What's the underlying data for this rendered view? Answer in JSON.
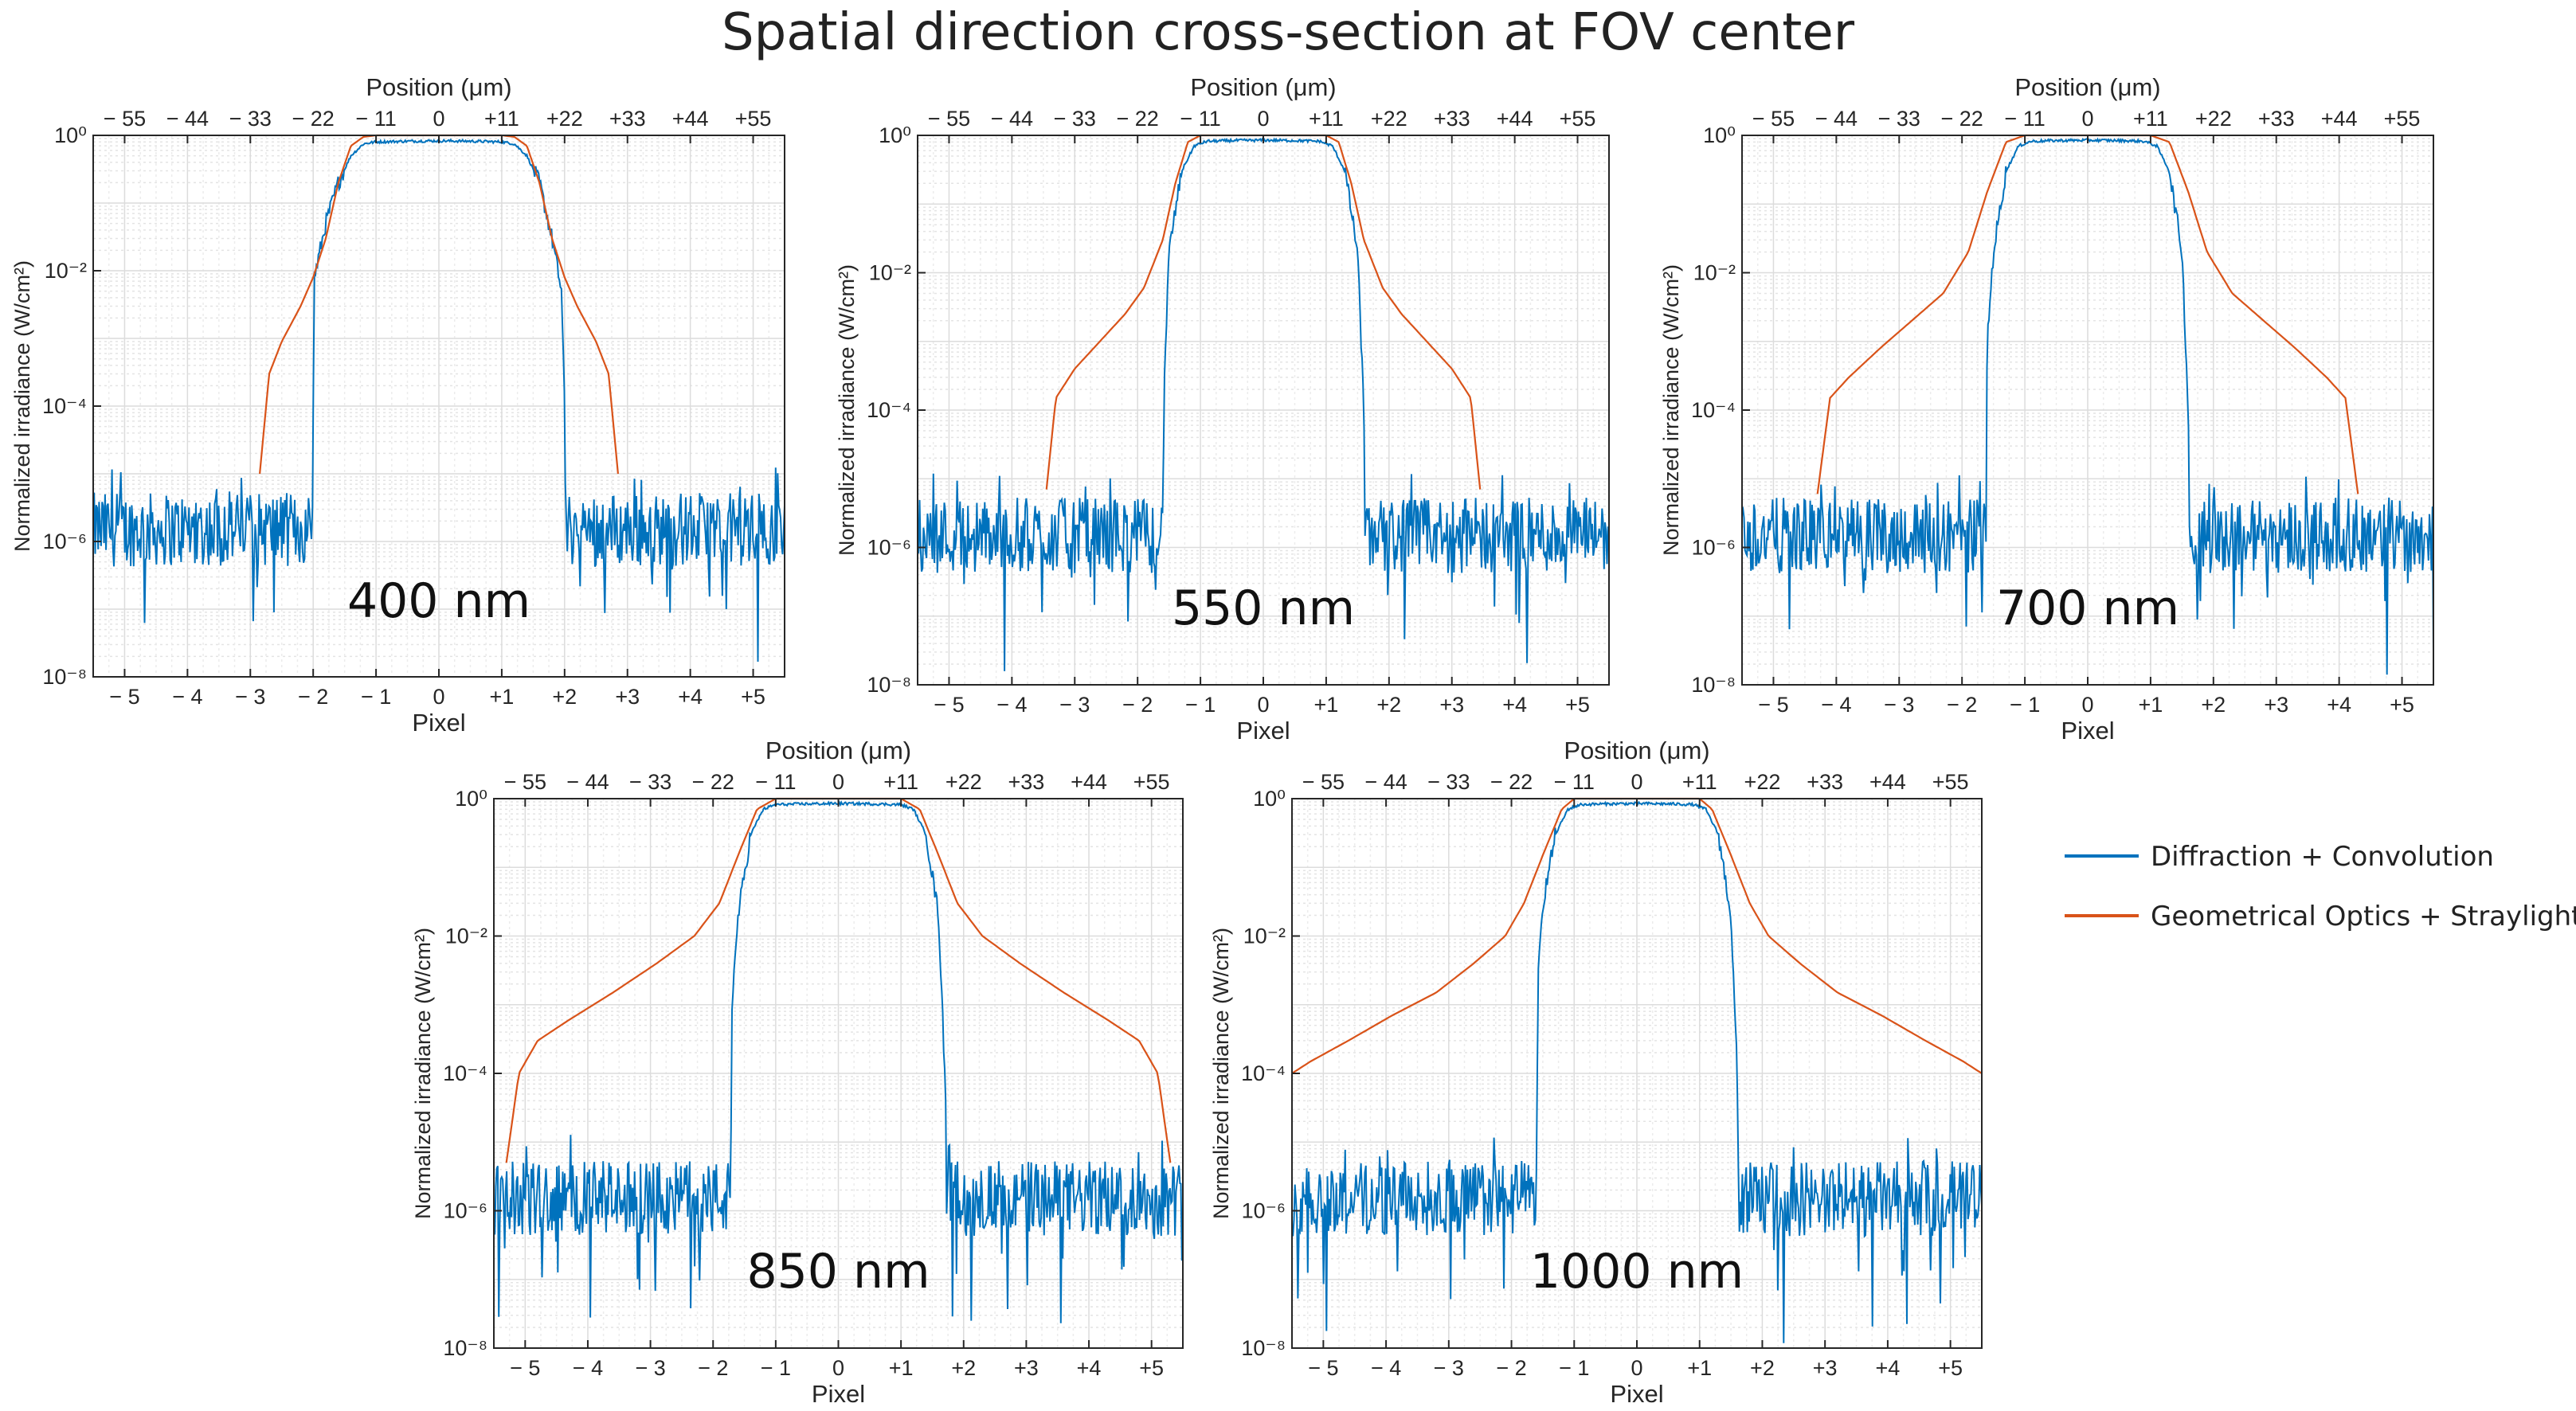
{
  "title": "Spatial direction cross-section at FOV center",
  "legend": [
    {
      "label": "Diffraction + Convolution",
      "color": "#0072BD"
    },
    {
      "label": "Geometrical Optics + Straylight",
      "color": "#D95319"
    }
  ],
  "chart_data": [
    {
      "type": "line",
      "wavelength_label": "400 nm",
      "xlabel": "Pixel",
      "x2label": "Position (μm)",
      "ylabel": "Normalized irradiance (W/cm²)",
      "yscale": "log",
      "ylim": [
        1e-08,
        1
      ],
      "xlim": [
        -5.5,
        5.5
      ],
      "xticks": [
        "− 5",
        "− 4",
        "− 3",
        "− 2",
        "− 1",
        "0",
        "+1",
        "+2",
        "+3",
        "+4",
        "+5"
      ],
      "x2ticks": [
        "− 55",
        "− 44",
        "− 33",
        "− 22",
        "− 11",
        "0",
        "+11",
        "+22",
        "+33",
        "+44",
        "+55"
      ],
      "yticks": [
        "10⁻⁸",
        "10⁻⁶",
        "10⁻⁴",
        "10⁻²",
        "10⁰"
      ],
      "series": [
        {
          "name": "Diffraction + Convolution",
          "x": [
            -5.5,
            -2.02,
            -1.98,
            -1.8,
            -1.6,
            -1.4,
            -1.2,
            -1.0,
            -0.5,
            0,
            0.5,
            1.0,
            1.2,
            1.4,
            1.6,
            1.8,
            1.95,
            2.0,
            2.02,
            5.5
          ],
          "y": [
            1.5e-06,
            1.5e-06,
            0.008,
            0.05,
            0.2,
            0.5,
            0.75,
            0.8,
            0.82,
            0.83,
            0.82,
            0.8,
            0.75,
            0.5,
            0.2,
            0.03,
            0.005,
            0.0001,
            1.5e-06,
            1.5e-06
          ]
        },
        {
          "name": "Geometrical Optics + Straylight",
          "x": [
            -2.85,
            -2.7,
            -2.5,
            -2.2,
            -2.0,
            -1.8,
            -1.6,
            -1.4,
            -1.2,
            -1.0,
            0,
            1.0,
            1.2,
            1.4,
            1.6,
            1.8,
            2.0,
            2.2,
            2.5,
            2.7,
            2.85
          ],
          "y": [
            1e-05,
            0.0003,
            0.0009,
            0.003,
            0.008,
            0.03,
            0.2,
            0.7,
            0.95,
            1.0,
            1.0,
            1.0,
            0.95,
            0.7,
            0.2,
            0.03,
            0.008,
            0.003,
            0.0009,
            0.0003,
            1e-05
          ]
        }
      ]
    },
    {
      "type": "line",
      "wavelength_label": "550 nm",
      "xlabel": "Pixel",
      "x2label": "Position (μm)",
      "ylabel": "Normalized irradiance (W/cm²)",
      "yscale": "log",
      "ylim": [
        1e-08,
        1
      ],
      "xlim": [
        -5.5,
        5.5
      ],
      "xticks": [
        "− 5",
        "− 4",
        "− 3",
        "− 2",
        "− 1",
        "0",
        "+1",
        "+2",
        "+3",
        "+4",
        "+5"
      ],
      "x2ticks": [
        "− 55",
        "− 44",
        "− 33",
        "− 22",
        "− 11",
        "0",
        "+11",
        "+22",
        "+33",
        "+44",
        "+55"
      ],
      "yticks": [
        "10⁻⁸",
        "10⁻⁶",
        "10⁻⁴",
        "10⁻²",
        "10⁰"
      ],
      "series": [
        {
          "name": "Diffraction + Convolution",
          "x": [
            -5.5,
            -1.6,
            -1.58,
            -1.5,
            -1.3,
            -1.1,
            -0.9,
            -0.5,
            0,
            0.5,
            0.9,
            1.1,
            1.3,
            1.5,
            1.6,
            1.62,
            5.5
          ],
          "y": [
            1.5e-06,
            1.5e-06,
            0.0002,
            0.02,
            0.3,
            0.7,
            0.82,
            0.84,
            0.85,
            0.84,
            0.82,
            0.7,
            0.3,
            0.02,
            0.0001,
            1.5e-06,
            1.5e-06
          ]
        },
        {
          "name": "Geometrical Optics + Straylight",
          "x": [
            -3.45,
            -3.3,
            -3.0,
            -2.6,
            -2.2,
            -1.9,
            -1.6,
            -1.4,
            -1.2,
            -1.0,
            0,
            1.0,
            1.2,
            1.4,
            1.6,
            1.9,
            2.2,
            2.6,
            3.0,
            3.3,
            3.45
          ],
          "y": [
            7e-06,
            0.00015,
            0.0004,
            0.001,
            0.0025,
            0.006,
            0.03,
            0.2,
            0.8,
            1.0,
            1.0,
            1.0,
            0.8,
            0.2,
            0.03,
            0.006,
            0.0025,
            0.001,
            0.0004,
            0.00015,
            7e-06
          ]
        }
      ]
    },
    {
      "type": "line",
      "wavelength_label": "700 nm",
      "xlabel": "Pixel",
      "x2label": "Position (μm)",
      "ylabel": "Normalized irradiance (W/cm²)",
      "yscale": "log",
      "ylim": [
        1e-08,
        1
      ],
      "xlim": [
        -5.5,
        5.5
      ],
      "xticks": [
        "− 5",
        "− 4",
        "− 3",
        "− 2",
        "− 1",
        "0",
        "+1",
        "+2",
        "+3",
        "+4",
        "+5"
      ],
      "x2ticks": [
        "− 55",
        "− 44",
        "− 33",
        "− 22",
        "− 11",
        "0",
        "+11",
        "+22",
        "+33",
        "+44",
        "+55"
      ],
      "yticks": [
        "10⁻⁸",
        "10⁻⁶",
        "10⁻⁴",
        "10⁻²",
        "10⁰"
      ],
      "series": [
        {
          "name": "Diffraction + Convolution",
          "x": [
            -5.5,
            -1.62,
            -1.6,
            -1.5,
            -1.3,
            -1.1,
            -0.9,
            -0.5,
            0,
            0.5,
            0.9,
            1.1,
            1.3,
            1.5,
            1.6,
            1.62,
            5.5
          ],
          "y": [
            1.5e-06,
            1.5e-06,
            0.001,
            0.02,
            0.3,
            0.7,
            0.82,
            0.84,
            0.85,
            0.84,
            0.82,
            0.7,
            0.3,
            0.02,
            0.0001,
            1.5e-06,
            1.5e-06
          ]
        },
        {
          "name": "Geometrical Optics + Straylight",
          "x": [
            -4.3,
            -4.1,
            -3.8,
            -3.3,
            -2.8,
            -2.3,
            -1.9,
            -1.6,
            -1.3,
            -1.0,
            0,
            1.0,
            1.3,
            1.6,
            1.9,
            2.3,
            2.8,
            3.3,
            3.8,
            4.1,
            4.3
          ],
          "y": [
            6e-06,
            0.00015,
            0.0003,
            0.0008,
            0.002,
            0.005,
            0.02,
            0.15,
            0.8,
            1.0,
            1.0,
            1.0,
            0.8,
            0.15,
            0.02,
            0.005,
            0.002,
            0.0008,
            0.0003,
            0.00015,
            6e-06
          ]
        }
      ]
    },
    {
      "type": "line",
      "wavelength_label": "850 nm",
      "xlabel": "Pixel",
      "x2label": "Position (μm)",
      "ylabel": "Normalized irradiance (W/cm²)",
      "yscale": "log",
      "ylim": [
        1e-08,
        1
      ],
      "xlim": [
        -5.5,
        5.5
      ],
      "xticks": [
        "− 5",
        "− 4",
        "− 3",
        "− 2",
        "− 1",
        "0",
        "+1",
        "+2",
        "+3",
        "+4",
        "+5"
      ],
      "x2ticks": [
        "− 55",
        "− 44",
        "− 33",
        "− 22",
        "− 11",
        "0",
        "+11",
        "+22",
        "+33",
        "+44",
        "+55"
      ],
      "yticks": [
        "10⁻⁸",
        "10⁻⁶",
        "10⁻⁴",
        "10⁻²",
        "10⁰"
      ],
      "series": [
        {
          "name": "Diffraction + Convolution",
          "x": [
            -5.5,
            -1.72,
            -1.7,
            -1.6,
            -1.4,
            -1.2,
            -1.0,
            -0.5,
            0,
            0.5,
            1.0,
            1.2,
            1.4,
            1.6,
            1.7,
            1.72,
            5.5
          ],
          "y": [
            1.5e-06,
            1.5e-06,
            0.001,
            0.02,
            0.3,
            0.7,
            0.82,
            0.84,
            0.85,
            0.84,
            0.82,
            0.7,
            0.3,
            0.02,
            0.0001,
            1.5e-06,
            1.5e-06
          ]
        },
        {
          "name": "Geometrical Optics + Straylight",
          "x": [
            -5.3,
            -5.1,
            -4.8,
            -4.3,
            -3.6,
            -2.9,
            -2.3,
            -1.9,
            -1.6,
            -1.3,
            -1.0,
            0,
            1.0,
            1.3,
            1.6,
            1.9,
            2.3,
            2.9,
            3.6,
            4.3,
            4.8,
            5.1,
            5.3
          ],
          "y": [
            5e-06,
            0.0001,
            0.0003,
            0.0006,
            0.0015,
            0.004,
            0.01,
            0.03,
            0.15,
            0.7,
            1.0,
            1.0,
            1.0,
            0.7,
            0.15,
            0.03,
            0.01,
            0.004,
            0.0015,
            0.0006,
            0.0003,
            0.0001,
            5e-06
          ]
        }
      ]
    },
    {
      "type": "line",
      "wavelength_label": "1000 nm",
      "xlabel": "Pixel",
      "x2label": "Position (μm)",
      "ylabel": "Normalized irradiance (W/cm²)",
      "yscale": "log",
      "ylim": [
        1e-08,
        1
      ],
      "xlim": [
        -5.5,
        5.5
      ],
      "xticks": [
        "− 5",
        "− 4",
        "− 3",
        "− 2",
        "− 1",
        "0",
        "+1",
        "+2",
        "+3",
        "+4",
        "+5"
      ],
      "x2ticks": [
        "− 55",
        "− 44",
        "− 33",
        "− 22",
        "− 11",
        "0",
        "+11",
        "+22",
        "+33",
        "+44",
        "+55"
      ],
      "yticks": [
        "10⁻⁸",
        "10⁻⁶",
        "10⁻⁴",
        "10⁻²",
        "10⁰"
      ],
      "series": [
        {
          "name": "Diffraction + Convolution",
          "x": [
            -5.5,
            -1.6,
            -1.58,
            -1.5,
            -1.3,
            -1.1,
            -0.9,
            -0.5,
            0,
            0.5,
            0.9,
            1.1,
            1.3,
            1.5,
            1.6,
            1.62,
            5.5
          ],
          "y": [
            1.5e-06,
            1.5e-06,
            0.002,
            0.03,
            0.3,
            0.7,
            0.82,
            0.84,
            0.85,
            0.84,
            0.82,
            0.7,
            0.3,
            0.02,
            0.0001,
            1.5e-06,
            1.5e-06
          ]
        },
        {
          "name": "Geometrical Optics + Straylight",
          "x": [
            -5.5,
            -5.2,
            -4.6,
            -3.9,
            -3.2,
            -2.6,
            -2.1,
            -1.8,
            -1.5,
            -1.2,
            -1.0,
            0,
            1.0,
            1.2,
            1.5,
            1.8,
            2.1,
            2.6,
            3.2,
            3.9,
            4.6,
            5.2,
            5.5
          ],
          "y": [
            0.0001,
            0.00015,
            0.0003,
            0.0007,
            0.0015,
            0.004,
            0.01,
            0.03,
            0.15,
            0.7,
            1.0,
            1.0,
            1.0,
            0.7,
            0.15,
            0.03,
            0.01,
            0.004,
            0.0015,
            0.0007,
            0.0003,
            0.00015,
            0.0001
          ]
        }
      ]
    }
  ]
}
